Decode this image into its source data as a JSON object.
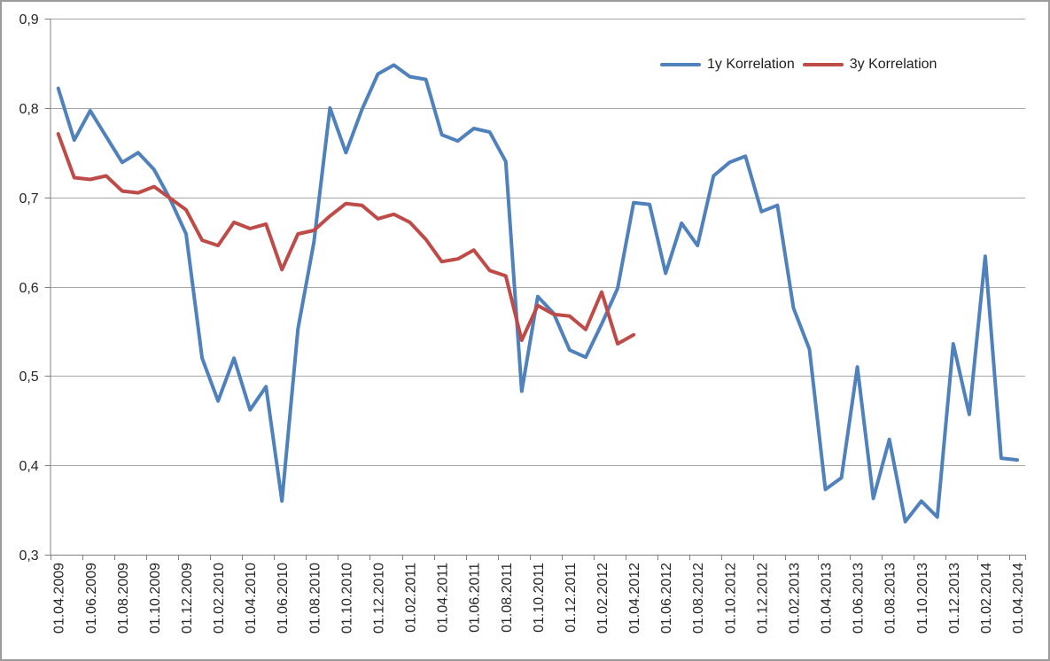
{
  "chart_data": {
    "type": "line",
    "title": "",
    "grid": true,
    "legend_position": "top-right-inside",
    "x_label_interval": 2,
    "x_label_rotation_deg": -90,
    "y_axis": {
      "min": 0.3,
      "max": 0.9,
      "step": 0.1,
      "tick_labels": [
        "0,9",
        "0,8",
        "0,7",
        "0,6",
        "0,5",
        "0,4",
        "0,3"
      ]
    },
    "categories": [
      "01.04.2009",
      "01.05.2009",
      "01.06.2009",
      "01.07.2009",
      "01.08.2009",
      "01.09.2009",
      "01.10.2009",
      "01.11.2009",
      "01.12.2009",
      "01.01.2010",
      "01.02.2010",
      "01.03.2010",
      "01.04.2010",
      "01.05.2010",
      "01.06.2010",
      "01.07.2010",
      "01.08.2010",
      "01.09.2010",
      "01.10.2010",
      "01.11.2010",
      "01.12.2010",
      "01.01.2011",
      "01.02.2011",
      "01.03.2011",
      "01.04.2011",
      "01.05.2011",
      "01.06.2011",
      "01.07.2011",
      "01.08.2011",
      "01.09.2011",
      "01.10.2011",
      "01.11.2011",
      "01.12.2011",
      "01.01.2012",
      "01.02.2012",
      "01.03.2012",
      "01.04.2012",
      "01.05.2012",
      "01.06.2012",
      "01.07.2012",
      "01.08.2012",
      "01.09.2012",
      "01.10.2012",
      "01.11.2012",
      "01.12.2012",
      "01.01.2013",
      "01.02.2013",
      "01.03.2013",
      "01.04.2013",
      "01.05.2013",
      "01.06.2013",
      "01.07.2013",
      "01.08.2013",
      "01.09.2013",
      "01.10.2013",
      "01.11.2013",
      "01.12.2013",
      "01.01.2014",
      "01.02.2014",
      "01.03.2014",
      "01.04.2014"
    ],
    "series": [
      {
        "name": "1y Korrelation",
        "color": "#4F81BD",
        "values": [
          0.822,
          0.764,
          0.797,
          0.768,
          0.739,
          0.75,
          0.731,
          0.698,
          0.659,
          0.52,
          0.472,
          0.52,
          0.462,
          0.488,
          0.36,
          0.553,
          0.65,
          0.8,
          0.75,
          0.798,
          0.838,
          0.848,
          0.835,
          0.832,
          0.77,
          0.763,
          0.777,
          0.773,
          0.74,
          0.483,
          0.589,
          0.57,
          0.529,
          0.521,
          0.558,
          0.598,
          0.694,
          0.692,
          0.615,
          0.671,
          0.646,
          0.724,
          0.739,
          0.746,
          0.684,
          0.691,
          0.576,
          0.53,
          0.373,
          0.386,
          0.51,
          0.363,
          0.429,
          0.337,
          0.36,
          0.342,
          0.536,
          0.457,
          0.634,
          0.408,
          0.406
        ]
      },
      {
        "name": "3y Korrelation",
        "color": "#BE4B48",
        "values": [
          0.771,
          0.722,
          0.72,
          0.724,
          0.707,
          0.705,
          0.712,
          0.699,
          0.686,
          0.652,
          0.646,
          0.672,
          0.665,
          0.67,
          0.619,
          0.659,
          0.663,
          0.679,
          0.693,
          0.691,
          0.676,
          0.681,
          0.672,
          0.653,
          0.628,
          0.631,
          0.641,
          0.618,
          0.612,
          0.54,
          0.579,
          0.569,
          0.567,
          0.552,
          0.594,
          0.536,
          0.546
        ]
      }
    ],
    "colors": {
      "gridline": "#A6A6A6",
      "axis": "#808080",
      "tick_text": "#262626"
    }
  },
  "legend": {
    "items": [
      {
        "label": "1y Korrelation"
      },
      {
        "label": "3y Korrelation"
      }
    ]
  }
}
